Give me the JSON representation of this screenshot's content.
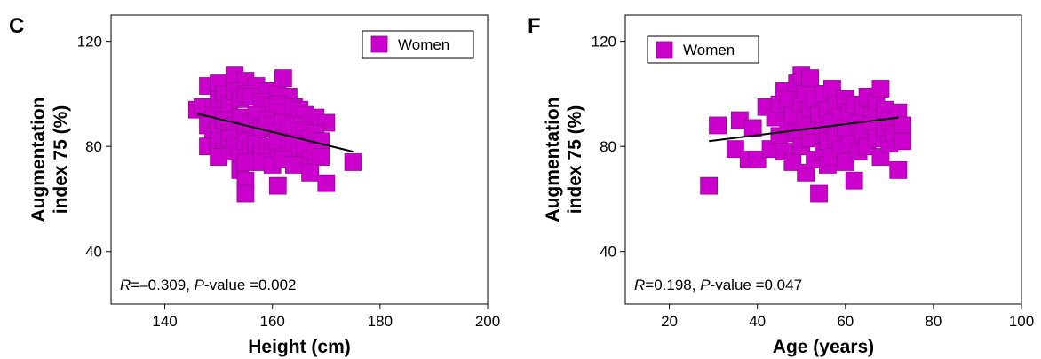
{
  "chart_data": [
    {
      "panel_label": "C",
      "type": "scatter",
      "xlabel": "Height (cm)",
      "ylabel": "Augmentation index 75 (%)",
      "ylabel_lines": [
        "Augmentation",
        "index 75 (%)"
      ],
      "xlim": [
        130,
        200
      ],
      "ylim": [
        20,
        130
      ],
      "xticks": [
        140,
        160,
        180,
        200
      ],
      "yticks": [
        40,
        80,
        120
      ],
      "legend": {
        "entries": [
          "Women"
        ],
        "placement": "top-right"
      },
      "marker_color": "#cc00cc",
      "marker_edge": "#9a009a",
      "stat": {
        "R_symbol": "R",
        "R_value": "=–0.309, ",
        "P_symbol": "P",
        "P_value": "-value =0.002"
      },
      "trend_line": {
        "x": [
          146,
          175
        ],
        "y": [
          92.5,
          78
        ]
      },
      "series": [
        {
          "name": "Women",
          "points": [
            [
              146,
              94
            ],
            [
              148,
              103
            ],
            [
              150,
              104
            ],
            [
              153,
              107
            ],
            [
              155,
              105
            ],
            [
              157,
              103
            ],
            [
              159,
              101
            ],
            [
              161,
              100
            ],
            [
              163,
              99
            ],
            [
              162,
              106
            ],
            [
              147,
              95
            ],
            [
              149,
              92
            ],
            [
              150,
              98
            ],
            [
              151,
              100
            ],
            [
              152,
              96
            ],
            [
              153,
              101
            ],
            [
              154,
              98
            ],
            [
              155,
              100
            ],
            [
              156,
              99
            ],
            [
              158,
              97
            ],
            [
              160,
              95
            ],
            [
              161,
              96
            ],
            [
              162,
              93
            ],
            [
              164,
              95
            ],
            [
              165,
              94
            ],
            [
              166,
              92
            ],
            [
              168,
              91
            ],
            [
              170,
              89
            ],
            [
              148,
              88
            ],
            [
              149,
              84
            ],
            [
              150,
              87
            ],
            [
              151,
              90
            ],
            [
              152,
              85
            ],
            [
              153,
              88
            ],
            [
              154,
              91
            ],
            [
              155,
              86
            ],
            [
              156,
              89
            ],
            [
              157,
              92
            ],
            [
              158,
              87
            ],
            [
              159,
              90
            ],
            [
              160,
              88
            ],
            [
              161,
              85
            ],
            [
              162,
              89
            ],
            [
              163,
              86
            ],
            [
              164,
              88
            ],
            [
              165,
              84
            ],
            [
              166,
              86
            ],
            [
              167,
              83
            ],
            [
              168,
              85
            ],
            [
              169,
              82
            ],
            [
              148,
              80
            ],
            [
              150,
              82
            ],
            [
              151,
              78
            ],
            [
              152,
              83
            ],
            [
              153,
              80
            ],
            [
              154,
              76
            ],
            [
              155,
              82
            ],
            [
              156,
              79
            ],
            [
              157,
              81
            ],
            [
              158,
              77
            ],
            [
              159,
              80
            ],
            [
              160,
              78
            ],
            [
              161,
              82
            ],
            [
              162,
              76
            ],
            [
              163,
              79
            ],
            [
              164,
              81
            ],
            [
              165,
              77
            ],
            [
              166,
              80
            ],
            [
              167,
              75
            ],
            [
              168,
              78
            ],
            [
              169,
              76
            ],
            [
              150,
              76
            ],
            [
              154,
              71
            ],
            [
              155,
              74
            ],
            [
              158,
              74
            ],
            [
              160,
              73
            ],
            [
              162,
              75
            ],
            [
              164,
              73
            ],
            [
              167,
              70
            ],
            [
              170,
              66
            ],
            [
              155,
              67
            ],
            [
              155,
              62
            ],
            [
              161,
              65
            ],
            [
              175,
              74
            ]
          ]
        }
      ]
    },
    {
      "panel_label": "F",
      "type": "scatter",
      "xlabel": "Age (years)",
      "ylabel": "Augmentation index 75 (%)",
      "ylabel_lines": [
        "Augmentation",
        "index 75 (%)"
      ],
      "xlim": [
        10,
        100
      ],
      "ylim": [
        20,
        130
      ],
      "xticks": [
        20,
        40,
        60,
        80,
        100
      ],
      "yticks": [
        40,
        80,
        120
      ],
      "legend": {
        "entries": [
          "Women"
        ],
        "placement": "top-left"
      },
      "marker_color": "#cc00cc",
      "marker_edge": "#9a009a",
      "stat": {
        "R_symbol": "R",
        "R_value": "=0.198, ",
        "P_symbol": "P",
        "P_value": "-value =0.047"
      },
      "trend_line": {
        "x": [
          29,
          72
        ],
        "y": [
          82,
          91
        ]
      },
      "series": [
        {
          "name": "Women",
          "points": [
            [
              29,
              65
            ],
            [
              31,
              88
            ],
            [
              35,
              79
            ],
            [
              36,
              90
            ],
            [
              38,
              75
            ],
            [
              39,
              87
            ],
            [
              40,
              75
            ],
            [
              42,
              95
            ],
            [
              43,
              79
            ],
            [
              44,
              91
            ],
            [
              45,
              96
            ],
            [
              45,
              84
            ],
            [
              46,
              101
            ],
            [
              46,
              78
            ],
            [
              47,
              98
            ],
            [
              47,
              88
            ],
            [
              48,
              92
            ],
            [
              48,
              74
            ],
            [
              49,
              104
            ],
            [
              49,
              85
            ],
            [
              50,
              107
            ],
            [
              50,
              96
            ],
            [
              50,
              80
            ],
            [
              51,
              100
            ],
            [
              51,
              90
            ],
            [
              51,
              70
            ],
            [
              52,
              106
            ],
            [
              52,
              94
            ],
            [
              52,
              83
            ],
            [
              53,
              98
            ],
            [
              53,
              88
            ],
            [
              53,
              75
            ],
            [
              54,
              92
            ],
            [
              54,
              62
            ],
            [
              55,
              100
            ],
            [
              55,
              86
            ],
            [
              55,
              78
            ],
            [
              56,
              94
            ],
            [
              56,
              82
            ],
            [
              56,
              73
            ],
            [
              57,
              102
            ],
            [
              57,
              89
            ],
            [
              57,
              76
            ],
            [
              58,
              96
            ],
            [
              58,
              84
            ],
            [
              59,
              91
            ],
            [
              59,
              79
            ],
            [
              60,
              98
            ],
            [
              60,
              87
            ],
            [
              60,
              74
            ],
            [
              61,
              93
            ],
            [
              61,
              81
            ],
            [
              62,
              96
            ],
            [
              62,
              67
            ],
            [
              63,
              89
            ],
            [
              63,
              78
            ],
            [
              64,
              95
            ],
            [
              64,
              85
            ],
            [
              65,
              99
            ],
            [
              65,
              80
            ],
            [
              66,
              92
            ],
            [
              66,
              88
            ],
            [
              67,
              97
            ],
            [
              67,
              83
            ],
            [
              68,
              102
            ],
            [
              68,
              76
            ],
            [
              69,
              94
            ],
            [
              69,
              87
            ],
            [
              70,
              90
            ],
            [
              70,
              81
            ],
            [
              71,
              85
            ],
            [
              72,
              93
            ],
            [
              72,
              71
            ],
            [
              73,
              88
            ],
            [
              73,
              82
            ]
          ]
        }
      ]
    }
  ]
}
